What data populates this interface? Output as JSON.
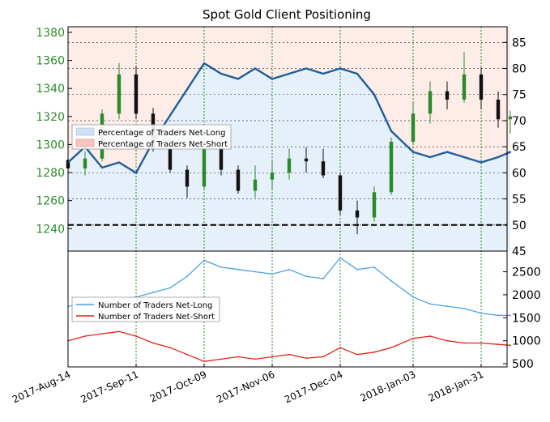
{
  "chart_data": [
    {
      "type": "candlestick+line",
      "title": "Spot Gold Client Positioning",
      "x_ticks": [
        "2017-Aug-14",
        "2017-Sep-11",
        "2017-Oct-09",
        "2017-Nov-06",
        "2017-Dec-04",
        "2018-Jan-03",
        "2018-Jan-31"
      ],
      "left_axis": {
        "ticks": [
          1240,
          1260,
          1280,
          1300,
          1320,
          1340,
          1360,
          1380
        ],
        "range": [
          1224,
          1384
        ],
        "color": "#2e8b2e"
      },
      "right_axis": {
        "ticks": [
          45,
          50,
          55,
          60,
          65,
          70,
          75,
          80,
          85
        ],
        "range": [
          45,
          88
        ]
      },
      "reference_line": 50,
      "legend": {
        "position": "upper-left",
        "entries": [
          "Percentage of Traders Net-Long",
          "Percentage of Traders Net-Short"
        ]
      },
      "series": [
        {
          "name": "Percentage of Traders Net-Long",
          "color": "#1f5f9a",
          "x": [
            "2017-08-14",
            "2017-08-21",
            "2017-08-28",
            "2017-09-04",
            "2017-09-11",
            "2017-09-18",
            "2017-09-25",
            "2017-10-02",
            "2017-10-09",
            "2017-10-16",
            "2017-10-23",
            "2017-10-30",
            "2017-11-06",
            "2017-11-13",
            "2017-11-20",
            "2017-11-27",
            "2017-12-04",
            "2017-12-11",
            "2017-12-18",
            "2017-12-25",
            "2018-01-03",
            "2018-01-10",
            "2018-01-17",
            "2018-01-24",
            "2018-01-31",
            "2018-02-07",
            "2018-02-12"
          ],
          "values": [
            62,
            65,
            61,
            62,
            60,
            66,
            71,
            76,
            81,
            79,
            78,
            80,
            78,
            79,
            80,
            79,
            80,
            79,
            75,
            68,
            64,
            63,
            64,
            63,
            62,
            63,
            64
          ]
        }
      ],
      "candles": [
        {
          "d": "2017-08-14",
          "o": 1289,
          "h": 1296,
          "l": 1275,
          "c": 1283
        },
        {
          "d": "2017-08-21",
          "o": 1283,
          "h": 1295,
          "l": 1278,
          "c": 1290
        },
        {
          "d": "2017-08-28",
          "o": 1290,
          "h": 1325,
          "l": 1288,
          "c": 1322
        },
        {
          "d": "2017-09-04",
          "o": 1322,
          "h": 1358,
          "l": 1318,
          "c": 1350
        },
        {
          "d": "2017-09-11",
          "o": 1350,
          "h": 1356,
          "l": 1318,
          "c": 1322
        },
        {
          "d": "2017-09-18",
          "o": 1322,
          "h": 1326,
          "l": 1295,
          "c": 1297
        },
        {
          "d": "2017-09-25",
          "o": 1297,
          "h": 1300,
          "l": 1280,
          "c": 1282
        },
        {
          "d": "2017-10-02",
          "o": 1282,
          "h": 1285,
          "l": 1262,
          "c": 1270
        },
        {
          "d": "2017-10-09",
          "o": 1270,
          "h": 1300,
          "l": 1268,
          "c": 1298
        },
        {
          "d": "2017-10-16",
          "o": 1298,
          "h": 1306,
          "l": 1278,
          "c": 1282
        },
        {
          "d": "2017-10-23",
          "o": 1282,
          "h": 1285,
          "l": 1265,
          "c": 1267
        },
        {
          "d": "2017-10-30",
          "o": 1267,
          "h": 1285,
          "l": 1262,
          "c": 1275
        },
        {
          "d": "2017-11-06",
          "o": 1275,
          "h": 1289,
          "l": 1268,
          "c": 1280
        },
        {
          "d": "2017-11-13",
          "o": 1280,
          "h": 1297,
          "l": 1275,
          "c": 1290
        },
        {
          "d": "2017-11-20",
          "o": 1290,
          "h": 1298,
          "l": 1280,
          "c": 1288
        },
        {
          "d": "2017-11-27",
          "o": 1288,
          "h": 1297,
          "l": 1276,
          "c": 1278
        },
        {
          "d": "2017-12-04",
          "o": 1278,
          "h": 1280,
          "l": 1250,
          "c": 1253
        },
        {
          "d": "2017-12-11",
          "o": 1253,
          "h": 1260,
          "l": 1236,
          "c": 1248
        },
        {
          "d": "2017-12-18",
          "o": 1248,
          "h": 1270,
          "l": 1245,
          "c": 1266
        },
        {
          "d": "2017-12-25",
          "o": 1266,
          "h": 1305,
          "l": 1264,
          "c": 1302
        },
        {
          "d": "2018-01-03",
          "o": 1302,
          "h": 1330,
          "l": 1300,
          "c": 1322
        },
        {
          "d": "2018-01-10",
          "o": 1322,
          "h": 1345,
          "l": 1315,
          "c": 1338
        },
        {
          "d": "2018-01-17",
          "o": 1338,
          "h": 1345,
          "l": 1325,
          "c": 1332
        },
        {
          "d": "2018-01-24",
          "o": 1332,
          "h": 1366,
          "l": 1330,
          "c": 1350
        },
        {
          "d": "2018-01-31",
          "o": 1350,
          "h": 1355,
          "l": 1325,
          "c": 1332
        },
        {
          "d": "2018-02-07",
          "o": 1332,
          "h": 1338,
          "l": 1312,
          "c": 1318
        },
        {
          "d": "2018-02-12",
          "o": 1318,
          "h": 1324,
          "l": 1308,
          "c": 1320
        }
      ]
    },
    {
      "type": "line",
      "x_ticks": [
        "2017-Aug-14",
        "2017-Sep-11",
        "2017-Oct-09",
        "2017-Nov-06",
        "2017-Dec-04",
        "2018-Jan-03",
        "2018-Jan-31"
      ],
      "right_axis": {
        "ticks": [
          500,
          1000,
          1500,
          2000,
          2500
        ],
        "range": [
          430,
          2950
        ]
      },
      "legend": {
        "position": "center-left",
        "entries": [
          "Number of Traders Net-Long",
          "Number of Traders Net-Short"
        ]
      },
      "series": [
        {
          "name": "Number of Traders Net-Long",
          "color": "#4aa3df",
          "x": [
            "2017-08-14",
            "2017-08-21",
            "2017-08-28",
            "2017-09-04",
            "2017-09-11",
            "2017-09-18",
            "2017-09-25",
            "2017-10-02",
            "2017-10-09",
            "2017-10-16",
            "2017-10-23",
            "2017-10-30",
            "2017-11-06",
            "2017-11-13",
            "2017-11-20",
            "2017-11-27",
            "2017-12-04",
            "2017-12-11",
            "2017-12-18",
            "2017-12-25",
            "2018-01-03",
            "2018-01-10",
            "2018-01-17",
            "2018-01-24",
            "2018-01-31",
            "2018-02-07",
            "2018-02-12"
          ],
          "values": [
            1750,
            1800,
            1850,
            1900,
            1950,
            2050,
            2150,
            2400,
            2750,
            2600,
            2550,
            2500,
            2450,
            2550,
            2400,
            2350,
            2800,
            2550,
            2600,
            2300,
            1950,
            1800,
            1750,
            1700,
            1600,
            1550,
            1550
          ]
        },
        {
          "name": "Number of Traders Net-Short",
          "color": "#e0241d",
          "x": [
            "2017-08-14",
            "2017-08-21",
            "2017-08-28",
            "2017-09-04",
            "2017-09-11",
            "2017-09-18",
            "2017-09-25",
            "2017-10-02",
            "2017-10-09",
            "2017-10-16",
            "2017-10-23",
            "2017-10-30",
            "2017-11-06",
            "2017-11-13",
            "2017-11-20",
            "2017-11-27",
            "2017-12-04",
            "2017-12-11",
            "2017-12-18",
            "2017-12-25",
            "2018-01-03",
            "2018-01-10",
            "2018-01-17",
            "2018-01-24",
            "2018-01-31",
            "2018-02-07",
            "2018-02-12"
          ],
          "values": [
            1000,
            1100,
            1150,
            1200,
            1100,
            950,
            850,
            700,
            550,
            600,
            650,
            600,
            650,
            700,
            620,
            650,
            850,
            700,
            750,
            850,
            1050,
            1100,
            1000,
            950,
            950,
            920,
            900
          ]
        }
      ]
    }
  ]
}
